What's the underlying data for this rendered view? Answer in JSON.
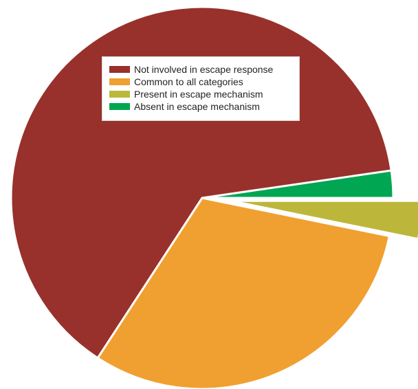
{
  "chart_data": {
    "type": "pie",
    "title": "",
    "legend_position": "top-left-inside",
    "slices": [
      {
        "key": "not_involved",
        "label": "Not involved in escape response",
        "value": 63.5,
        "color": "#98312b",
        "exploded": false
      },
      {
        "key": "common",
        "label": "Common to all categories",
        "value": 31.0,
        "color": "#f0a030",
        "exploded": false
      },
      {
        "key": "present",
        "label": "Present in escape mechanism",
        "value": 3.2,
        "color": "#bcb73b",
        "exploded": true
      },
      {
        "key": "absent",
        "label": "Absent in escape mechanism",
        "value": 2.3,
        "color": "#00a651",
        "exploded": false
      }
    ]
  }
}
